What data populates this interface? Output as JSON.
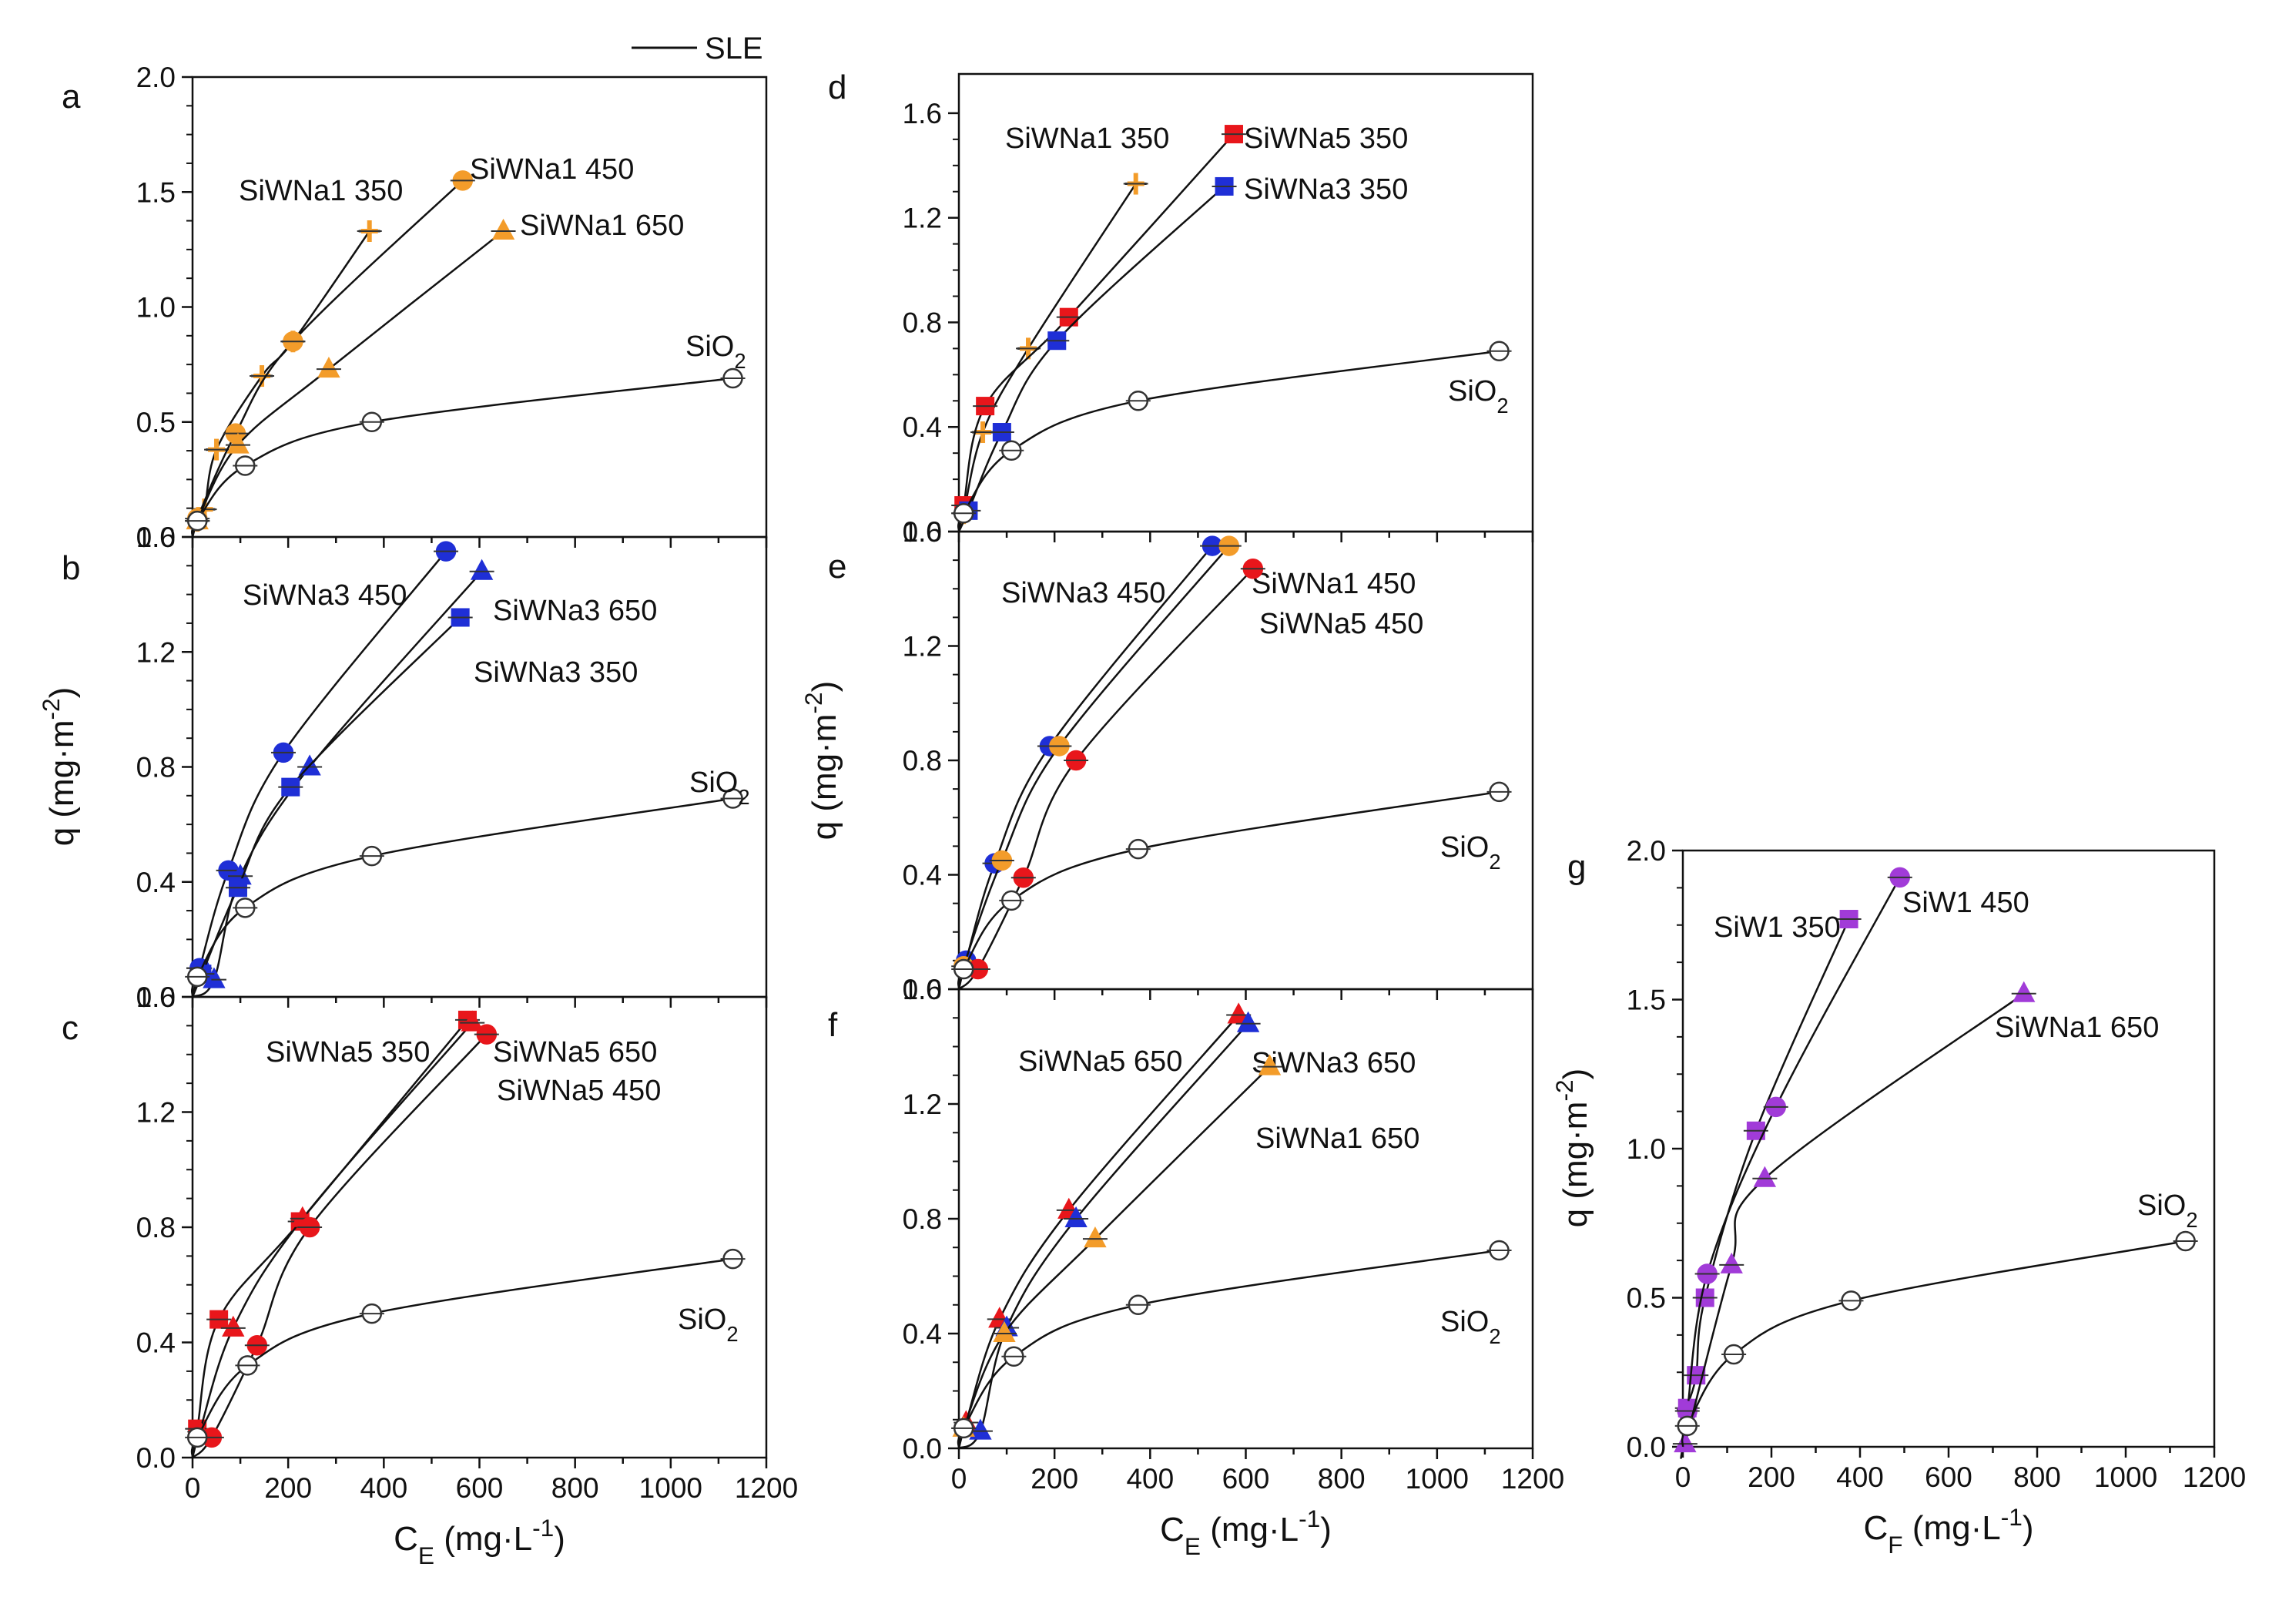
{
  "legend": {
    "label": "SLE"
  },
  "colors": {
    "orange": "#f39c2a",
    "blue": "#1f2fd6",
    "red": "#e8161b",
    "purple": "#a13bd8",
    "open": "#ffffff"
  },
  "chart_data": [
    {
      "id": "a",
      "type": "scatter",
      "panel_label": "a",
      "xlim": [
        0,
        1200
      ],
      "ylim": [
        0,
        2.0
      ],
      "yticks": [
        "0.0",
        "0.5",
        "1.0",
        "1.5",
        "2.0"
      ],
      "xticks": [],
      "ylabel": "",
      "xlabel": "",
      "series": [
        {
          "name": "SiWNa1 350",
          "label": "SiWNa1 350",
          "color": "orange",
          "marker": "plus",
          "x": [
            10,
            25,
            50,
            145,
            210,
            370
          ],
          "y": [
            0.07,
            0.12,
            0.38,
            0.7,
            0.85,
            1.33
          ]
        },
        {
          "name": "SiWNa1 450",
          "label": "SiWNa1 450",
          "color": "orange",
          "marker": "circle",
          "x": [
            10,
            90,
            210,
            565
          ],
          "y": [
            0.08,
            0.45,
            0.85,
            1.55
          ]
        },
        {
          "name": "SiWNa1 650",
          "label": "SiWNa1 650",
          "color": "orange",
          "marker": "triangle",
          "x": [
            10,
            95,
            285,
            650
          ],
          "y": [
            0.07,
            0.4,
            0.73,
            1.33
          ]
        },
        {
          "name": "SiO2",
          "label": "SiO",
          "label_sub": "2",
          "color": "open",
          "marker": "circle",
          "x": [
            10,
            110,
            375,
            1130
          ],
          "y": [
            0.07,
            0.31,
            0.5,
            0.69
          ]
        }
      ]
    },
    {
      "id": "b",
      "type": "scatter",
      "panel_label": "b",
      "xlim": [
        0,
        1200
      ],
      "ylim": [
        0,
        1.6
      ],
      "yticks": [
        "0.0",
        "0.4",
        "0.8",
        "1.2",
        "1.6"
      ],
      "xticks": [],
      "ylabel": "q (mg·m",
      "ylabel_sup": "-2",
      "ylabel_end": ")",
      "xlabel": "",
      "series": [
        {
          "name": "SiWNa3 450",
          "label": "SiWNa3 450",
          "color": "blue",
          "marker": "circle",
          "x": [
            15,
            75,
            190,
            530
          ],
          "y": [
            0.1,
            0.44,
            0.85,
            1.55
          ]
        },
        {
          "name": "SiWNa3 650",
          "label": "SiWNa3 650",
          "color": "blue",
          "marker": "triangle",
          "x": [
            45,
            100,
            245,
            605
          ],
          "y": [
            0.06,
            0.42,
            0.8,
            1.48
          ]
        },
        {
          "name": "SiWNa3 350",
          "label": "SiWNa3 350",
          "color": "blue",
          "marker": "square",
          "x": [
            20,
            95,
            205,
            560
          ],
          "y": [
            0.08,
            0.38,
            0.73,
            1.32
          ]
        },
        {
          "name": "SiO2",
          "label": "SiO",
          "label_sub": "2",
          "color": "open",
          "marker": "circle",
          "x": [
            10,
            110,
            375,
            1130
          ],
          "y": [
            0.07,
            0.31,
            0.49,
            0.69
          ]
        }
      ]
    },
    {
      "id": "c",
      "type": "scatter",
      "panel_label": "c",
      "xlim": [
        0,
        1200
      ],
      "ylim": [
        0,
        1.6
      ],
      "yticks": [
        "0.0",
        "0.4",
        "0.8",
        "1.2",
        "1.6"
      ],
      "xticks": [
        "0",
        "200",
        "400",
        "600",
        "800",
        "1000",
        "1200"
      ],
      "ylabel": "",
      "xlabel": "C",
      "xlabel_sub": "E",
      "xlabel_rest": " (mg·L",
      "xlabel_sup": "-1",
      "xlabel_end": ")",
      "series": [
        {
          "name": "SiWNa5 350",
          "label": "SiWNa5 350",
          "color": "red",
          "marker": "square",
          "x": [
            10,
            55,
            225,
            575
          ],
          "y": [
            0.1,
            0.48,
            0.82,
            1.52
          ]
        },
        {
          "name": "SiWNa5 650",
          "label": "SiWNa5 650",
          "color": "red",
          "marker": "triangle",
          "x": [
            15,
            85,
            230,
            585
          ],
          "y": [
            0.09,
            0.45,
            0.83,
            1.51
          ]
        },
        {
          "name": "SiWNa5 450",
          "label": "SiWNa5 450",
          "color": "red",
          "marker": "circle",
          "x": [
            40,
            135,
            245,
            615
          ],
          "y": [
            0.07,
            0.39,
            0.8,
            1.47
          ]
        },
        {
          "name": "SiO2",
          "label": "SiO",
          "label_sub": "2",
          "color": "open",
          "marker": "circle",
          "x": [
            10,
            115,
            375,
            1130
          ],
          "y": [
            0.07,
            0.32,
            0.5,
            0.69
          ]
        }
      ]
    },
    {
      "id": "d",
      "type": "scatter",
      "panel_label": "d",
      "xlim": [
        0,
        1200
      ],
      "ylim": [
        0,
        1.75
      ],
      "yticks": [
        "0.0",
        "0.4",
        "0.8",
        "1.2",
        "1.6"
      ],
      "xticks": [],
      "ylabel": "",
      "xlabel": "",
      "series": [
        {
          "name": "SiWNa1 350",
          "label": "SiWNa1 350",
          "color": "orange",
          "marker": "plus",
          "x": [
            10,
            50,
            145,
            370
          ],
          "y": [
            0.07,
            0.38,
            0.7,
            1.33
          ]
        },
        {
          "name": "SiWNa5 350",
          "label": "SiWNa5 350",
          "color": "red",
          "marker": "square",
          "x": [
            10,
            55,
            230,
            575
          ],
          "y": [
            0.1,
            0.48,
            0.82,
            1.52
          ]
        },
        {
          "name": "SiWNa3 350",
          "label": "SiWNa3 350",
          "color": "blue",
          "marker": "square",
          "x": [
            20,
            90,
            205,
            555
          ],
          "y": [
            0.08,
            0.38,
            0.73,
            1.32
          ]
        },
        {
          "name": "SiO2",
          "label": "SiO",
          "label_sub": "2",
          "color": "open",
          "marker": "circle",
          "x": [
            10,
            110,
            375,
            1130
          ],
          "y": [
            0.07,
            0.31,
            0.5,
            0.69
          ]
        }
      ]
    },
    {
      "id": "e",
      "type": "scatter",
      "panel_label": "e",
      "xlim": [
        0,
        1200
      ],
      "ylim": [
        0,
        1.6
      ],
      "yticks": [
        "0.0",
        "0.4",
        "0.8",
        "1.2",
        "1.6"
      ],
      "xticks": [],
      "ylabel": "q (mg·m",
      "ylabel_sup": "-2",
      "ylabel_end": ")",
      "xlabel": "",
      "series": [
        {
          "name": "SiWNa3 450",
          "label": "SiWNa3 450",
          "color": "blue",
          "marker": "circle",
          "x": [
            15,
            75,
            190,
            530
          ],
          "y": [
            0.1,
            0.44,
            0.85,
            1.55
          ]
        },
        {
          "name": "SiWNa1 450",
          "label": "SiWNa1 450",
          "color": "orange",
          "marker": "circle",
          "x": [
            10,
            90,
            210,
            565
          ],
          "y": [
            0.08,
            0.45,
            0.85,
            1.55
          ]
        },
        {
          "name": "SiWNa5 450",
          "label": "SiWNa5 450",
          "color": "red",
          "marker": "circle",
          "x": [
            40,
            135,
            245,
            615
          ],
          "y": [
            0.07,
            0.39,
            0.8,
            1.47
          ]
        },
        {
          "name": "SiO2",
          "label": "SiO",
          "label_sub": "2",
          "color": "open",
          "marker": "circle",
          "x": [
            10,
            110,
            375,
            1130
          ],
          "y": [
            0.07,
            0.31,
            0.49,
            0.69
          ]
        }
      ]
    },
    {
      "id": "f",
      "type": "scatter",
      "panel_label": "f",
      "xlim": [
        0,
        1200
      ],
      "ylim": [
        0,
        1.6
      ],
      "yticks": [
        "0.0",
        "0.4",
        "0.8",
        "1.2",
        "1.6"
      ],
      "xticks": [
        "0",
        "200",
        "400",
        "600",
        "800",
        "1000",
        "1200"
      ],
      "ylabel": "",
      "xlabel": "C",
      "xlabel_sub": "E",
      "xlabel_rest": " (mg·L",
      "xlabel_sup": "-1",
      "xlabel_end": ")",
      "series": [
        {
          "name": "SiWNa5 650",
          "label": "SiWNa5 650",
          "color": "red",
          "marker": "triangle",
          "x": [
            15,
            85,
            230,
            585
          ],
          "y": [
            0.09,
            0.45,
            0.83,
            1.51
          ]
        },
        {
          "name": "SiWNa3 650",
          "label": "SiWNa3 650",
          "color": "blue",
          "marker": "triangle",
          "x": [
            45,
            100,
            245,
            605
          ],
          "y": [
            0.06,
            0.42,
            0.8,
            1.48
          ]
        },
        {
          "name": "SiWNa1 650",
          "label": "SiWNa1 650",
          "color": "orange",
          "marker": "triangle",
          "x": [
            10,
            95,
            285,
            650
          ],
          "y": [
            0.07,
            0.4,
            0.73,
            1.33
          ]
        },
        {
          "name": "SiO2",
          "label": "SiO",
          "label_sub": "2",
          "color": "open",
          "marker": "circle",
          "x": [
            10,
            115,
            375,
            1130
          ],
          "y": [
            0.07,
            0.32,
            0.5,
            0.69
          ]
        }
      ]
    },
    {
      "id": "g",
      "type": "scatter",
      "panel_label": "g",
      "xlim": [
        0,
        1200
      ],
      "ylim": [
        0,
        2.0
      ],
      "yticks": [
        "0.0",
        "0.5",
        "1.0",
        "1.5",
        "2.0"
      ],
      "xticks": [
        "0",
        "200",
        "400",
        "600",
        "800",
        "1000",
        "1200"
      ],
      "ylabel": "q (mg·m",
      "ylabel_sup": "-2",
      "ylabel_end": ")",
      "xlabel": "C",
      "xlabel_sub": "F",
      "xlabel_rest": " (mg·L",
      "xlabel_sup": "-1",
      "xlabel_end": ")",
      "series": [
        {
          "name": "SiW1 350",
          "label": "SiW1 350",
          "color": "purple",
          "marker": "square",
          "x": [
            10,
            30,
            50,
            165,
            375
          ],
          "y": [
            0.13,
            0.24,
            0.5,
            1.06,
            1.77
          ]
        },
        {
          "name": "SiW1 450",
          "label": "SiW1 450",
          "color": "purple",
          "marker": "circle",
          "x": [
            10,
            55,
            210,
            490
          ],
          "y": [
            0.12,
            0.58,
            1.14,
            1.91
          ]
        },
        {
          "name": "SiWNa1 650",
          "label": "SiWNa1 650",
          "color": "purple",
          "marker": "triangle",
          "x": [
            5,
            110,
            185,
            770
          ],
          "y": [
            0.01,
            0.61,
            0.9,
            1.52
          ]
        },
        {
          "name": "SiO2",
          "label": "SiO",
          "label_sub": "2",
          "color": "open",
          "marker": "circle",
          "x": [
            10,
            115,
            380,
            1135
          ],
          "y": [
            0.07,
            0.31,
            0.49,
            0.69
          ]
        }
      ]
    }
  ]
}
